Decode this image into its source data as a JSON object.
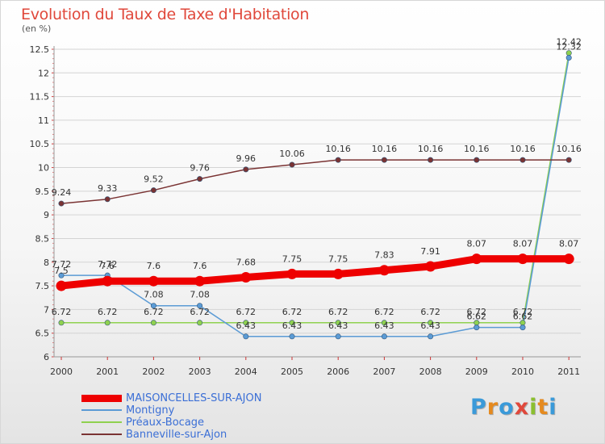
{
  "title": "Evolution du Taux de Taxe d'Habitation",
  "unit": "(en %)",
  "logo": {
    "text": "Proxiti",
    "letters": [
      {
        "ch": "P",
        "color": "#3a9ad9"
      },
      {
        "ch": "r",
        "color": "#e58a1f"
      },
      {
        "ch": "o",
        "color": "#3a9ad9"
      },
      {
        "ch": "x",
        "color": "#e0483b"
      },
      {
        "ch": "i",
        "color": "#8bbf2f"
      },
      {
        "ch": "t",
        "color": "#e58a1f"
      },
      {
        "ch": "i",
        "color": "#3a9ad9"
      }
    ]
  },
  "chart_data": {
    "type": "line",
    "title": "Evolution du Taux de Taxe d'Habitation",
    "ylabel": "(en %)",
    "ylim": [
      6,
      12.5
    ],
    "yticks": [
      "6",
      "6.5",
      "7",
      "7.5",
      "8",
      "8.5",
      "9",
      "9.5",
      "10",
      "10.5",
      "11",
      "11.5",
      "12",
      "12.5"
    ],
    "x": [
      "2000",
      "2001",
      "2002",
      "2003",
      "2004",
      "2005",
      "2006",
      "2007",
      "2008",
      "2009",
      "2010",
      "2011"
    ],
    "grid": "horizontal",
    "legend_position": "bottom-left",
    "series": [
      {
        "name": "MAISONCELLES-SUR-AJON",
        "color": "#ee0000",
        "values": [
          7.5,
          7.6,
          7.6,
          7.6,
          7.68,
          7.75,
          7.75,
          7.83,
          7.91,
          8.07,
          8.07,
          8.07
        ],
        "labels": [
          "7.5",
          "7.6",
          "7.6",
          "7.6",
          "7.68",
          "7.75",
          "7.75",
          "7.83",
          "7.91",
          "8.07",
          "8.07",
          "8.07"
        ]
      },
      {
        "name": "Montigny",
        "color": "#5b9bd5",
        "values": [
          7.72,
          7.72,
          7.08,
          7.08,
          6.43,
          6.43,
          6.43,
          6.43,
          6.43,
          6.62,
          6.62,
          12.32
        ],
        "labels": [
          "7.72",
          "7.72",
          "7.08",
          "7.08",
          "6.43",
          "6.43",
          "6.43",
          "6.43",
          "6.43",
          "6.62",
          "6.62",
          "12.32"
        ]
      },
      {
        "name": "Préaux-Bocage",
        "color": "#8fd14f",
        "values": [
          6.72,
          6.72,
          6.72,
          6.72,
          6.72,
          6.72,
          6.72,
          6.72,
          6.72,
          6.72,
          6.72,
          12.42
        ],
        "labels": [
          "6.72",
          "6.72",
          "6.72",
          "6.72",
          "6.72",
          "6.72",
          "6.72",
          "6.72",
          "6.72",
          "6.72",
          "6.72",
          "12.42"
        ]
      },
      {
        "name": "Banneville-sur-Ajon",
        "color": "#7a3333",
        "values": [
          9.24,
          9.33,
          9.52,
          9.76,
          9.96,
          10.06,
          10.16,
          10.16,
          10.16,
          10.16,
          10.16,
          10.16
        ],
        "labels": [
          "9.24",
          "9.33",
          "9.52",
          "9.76",
          "9.96",
          "10.06",
          "10.16",
          "10.16",
          "10.16",
          "10.16",
          "10.16",
          "10.16"
        ]
      }
    ]
  }
}
